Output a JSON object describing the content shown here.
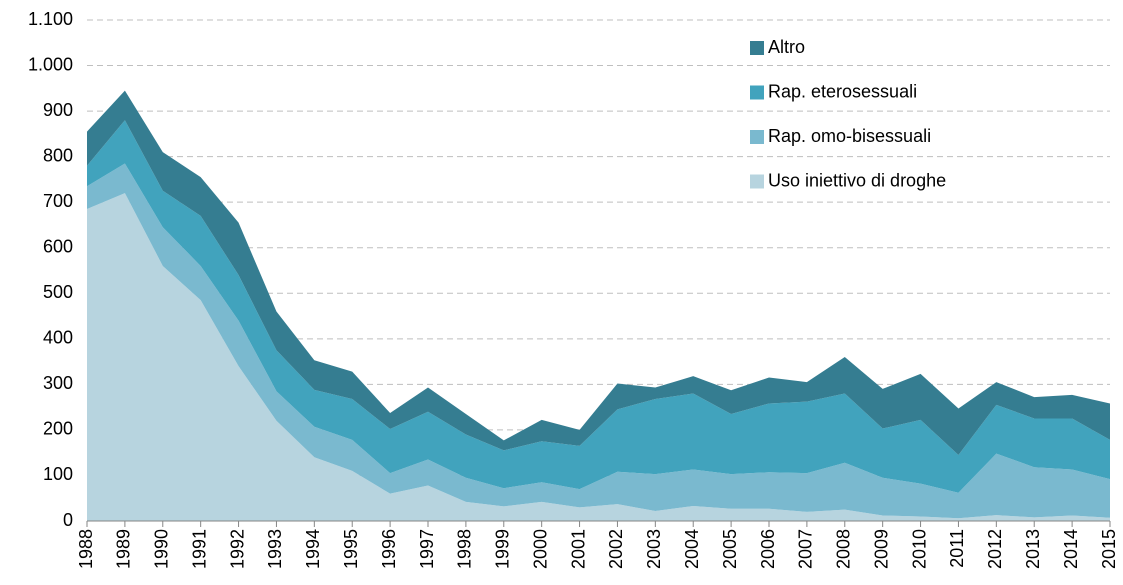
{
  "chart_data": {
    "type": "stacked_area",
    "categories": [
      "1988",
      "1989",
      "1990",
      "1991",
      "1992",
      "1993",
      "1994",
      "1995",
      "1996",
      "1997",
      "1998",
      "1999",
      "2000",
      "2001",
      "2002",
      "2003",
      "2004",
      "2005",
      "2006",
      "2007",
      "2008",
      "2009",
      "2010",
      "2011",
      "2012",
      "2013",
      "2014",
      "2015"
    ],
    "series": [
      {
        "name": "Uso iniettivo di droghe",
        "color": "#b7d4df",
        "values": [
          685,
          720,
          560,
          485,
          340,
          220,
          140,
          110,
          60,
          78,
          42,
          32,
          42,
          30,
          37,
          22,
          33,
          27,
          27,
          20,
          25,
          12,
          10,
          6,
          13,
          8,
          12,
          7
        ]
      },
      {
        "name": "Rap. omo-bisessuali",
        "color": "#7ab9cf",
        "values": [
          50,
          65,
          85,
          75,
          100,
          65,
          67,
          68,
          45,
          57,
          53,
          40,
          43,
          40,
          71,
          81,
          80,
          76,
          80,
          85,
          103,
          83,
          72,
          56,
          135,
          110,
          101,
          85
        ]
      },
      {
        "name": "Rap. eterosessuali",
        "color": "#41a3bd",
        "values": [
          45,
          95,
          80,
          110,
          100,
          90,
          81,
          90,
          97,
          105,
          95,
          83,
          90,
          95,
          137,
          165,
          167,
          132,
          151,
          157,
          152,
          108,
          140,
          83,
          107,
          107,
          112,
          86
        ]
      },
      {
        "name": "Altro",
        "color": "#357d91",
        "values": [
          75,
          65,
          85,
          85,
          115,
          85,
          65,
          60,
          35,
          53,
          45,
          22,
          47,
          35,
          57,
          25,
          38,
          52,
          57,
          43,
          80,
          87,
          101,
          102,
          50,
          47,
          52,
          80
        ]
      }
    ],
    "ylim": [
      0,
      1100
    ],
    "yticks": [
      0,
      100,
      200,
      300,
      400,
      500,
      600,
      700,
      800,
      900,
      {
        "value": 1000,
        "label": "1.000"
      },
      {
        "value": 1100,
        "label": "1.100"
      }
    ],
    "grid": true,
    "legend": "upper right"
  }
}
